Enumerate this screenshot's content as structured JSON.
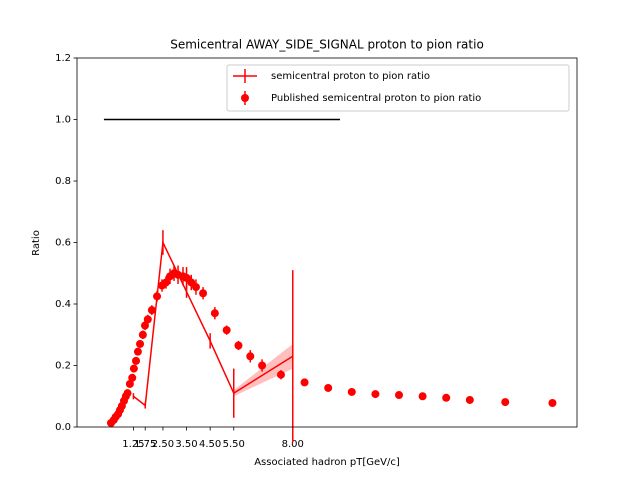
{
  "chart_data": {
    "type": "errorbar",
    "title": "Semicentral AWAY_SIDE_SIGNAL proton to pion ratio",
    "xlabel": "Associated hadron pT[GeV/c]",
    "ylabel": "Ratio",
    "xlim": [
      -1.14,
      20.04
    ],
    "ylim": [
      0,
      1.2
    ],
    "xticks": [
      {
        "value": 1.25,
        "label": "1.25"
      },
      {
        "value": 1.75,
        "label": "1.75"
      },
      {
        "value": 2.5,
        "label": "2.50"
      },
      {
        "value": 3.5,
        "label": "3.50"
      },
      {
        "value": 4.5,
        "label": "4.50"
      },
      {
        "value": 5.5,
        "label": "5.50"
      },
      {
        "value": 8,
        "label": "8.00"
      }
    ],
    "yticks": [
      {
        "value": 0,
        "label": "0.0"
      },
      {
        "value": 0.2,
        "label": "0.2"
      },
      {
        "value": 0.4,
        "label": "0.4"
      },
      {
        "value": 0.6,
        "label": "0.6"
      },
      {
        "value": 0.8,
        "label": "0.8"
      },
      {
        "value": 1.0,
        "label": "1.0"
      },
      {
        "value": 1.2,
        "label": "1.2"
      }
    ],
    "legend": "upper right",
    "hline": {
      "y": 1,
      "xmin": 0,
      "xmax": 10,
      "color": "#000000"
    },
    "series": [
      {
        "name": "semicentral proton to pion ratio",
        "style": "line",
        "color": "#ff0000",
        "x": [
          1.25,
          1.75,
          2.5,
          3.5,
          4.5,
          5.5,
          8.0
        ],
        "values": [
          0.1,
          0.07,
          0.6,
          0.44,
          0.28,
          0.11,
          0.23
        ],
        "errors": [
          0.01,
          0.01,
          0.04,
          0.02,
          0.025,
          0.08,
          0.28
        ],
        "band": {
          "x": [
            5.5,
            8.0
          ],
          "lower": [
            0.1,
            0.19
          ],
          "upper": [
            0.12,
            0.27
          ]
        }
      },
      {
        "name": "Published semicentral proton to pion ratio",
        "style": "points",
        "color": "#ff0000",
        "x": [
          0.3,
          0.42,
          0.5,
          0.6,
          0.68,
          0.76,
          0.85,
          0.93,
          1.0,
          1.1,
          1.2,
          1.27,
          1.36,
          1.44,
          1.53,
          1.65,
          1.74,
          1.86,
          2.03,
          2.25,
          2.46,
          2.63,
          2.8,
          2.97,
          3.14,
          3.35,
          3.5,
          3.7,
          3.9,
          4.2,
          4.7,
          5.2,
          5.7,
          6.2,
          6.7,
          7.5,
          8.5,
          9.5,
          10.5,
          11.5,
          12.5,
          13.5,
          14.5,
          15.5,
          17,
          19
        ],
        "values": [
          0.013,
          0.023,
          0.033,
          0.042,
          0.055,
          0.068,
          0.085,
          0.1,
          0.11,
          0.14,
          0.16,
          0.19,
          0.215,
          0.245,
          0.27,
          0.3,
          0.33,
          0.35,
          0.38,
          0.425,
          0.46,
          0.47,
          0.49,
          0.5,
          0.495,
          0.49,
          0.485,
          0.47,
          0.455,
          0.435,
          0.37,
          0.315,
          0.265,
          0.23,
          0.2,
          0.17,
          0.145,
          0.127,
          0.114,
          0.107,
          0.104,
          0.1,
          0.095,
          0.088,
          0.081,
          0.078
        ],
        "errors": [
          0.005,
          0.005,
          0.005,
          0.005,
          0.005,
          0.006,
          0.006,
          0.007,
          0.008,
          0.01,
          0.01,
          0.01,
          0.012,
          0.012,
          0.012,
          0.014,
          0.015,
          0.015,
          0.016,
          0.018,
          0.02,
          0.02,
          0.025,
          0.025,
          0.03,
          0.03,
          0.035,
          0.025,
          0.025,
          0.02,
          0.02,
          0.015,
          0.015,
          0.02,
          0.02,
          0.015,
          0.01,
          0.008,
          0.008,
          0.008,
          0.008,
          0.008,
          0.008,
          0.008,
          0.008,
          0.008
        ]
      }
    ]
  }
}
